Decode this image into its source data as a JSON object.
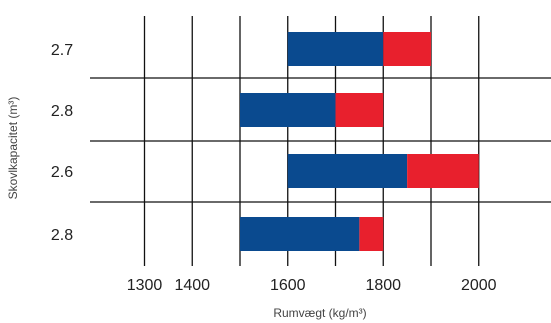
{
  "chart_data": {
    "type": "bar",
    "orientation": "horizontal",
    "stacked": true,
    "title": "",
    "xlabel": "Rumvægt (kg/m³)",
    "ylabel": "Skovlkapacitet (m³)",
    "xlim": [
      1200,
      2050
    ],
    "xticks": [
      "1300",
      "1400",
      "1500",
      "1600",
      "1700",
      "1800",
      "1900",
      "2000"
    ],
    "xtick_labels": [
      "1300",
      "1400",
      "1600",
      "1800",
      "2000"
    ],
    "categories": [
      "2.7",
      "2.8",
      "2.6",
      "2.8"
    ],
    "bars": [
      {
        "category": "2.7",
        "blue": [
          1600,
          1800
        ],
        "red": [
          1800,
          1900
        ]
      },
      {
        "category": "2.8",
        "blue": [
          1500,
          1700
        ],
        "red": [
          1700,
          1800
        ]
      },
      {
        "category": "2.6",
        "blue": [
          1600,
          1850
        ],
        "red": [
          1850,
          2000
        ]
      },
      {
        "category": "2.8",
        "blue": [
          1500,
          1750
        ],
        "red": [
          1750,
          1800
        ]
      }
    ],
    "grid": true,
    "legend": "none",
    "colors": {
      "blue": "#0a4a8f",
      "red": "#e8202d",
      "grid": "#111111"
    }
  }
}
